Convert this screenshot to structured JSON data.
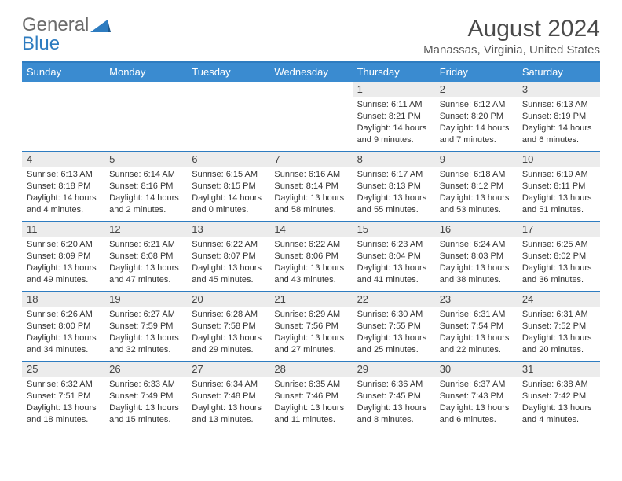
{
  "logo": {
    "general": "General",
    "blue": "Blue"
  },
  "title": "August 2024",
  "location": "Manassas, Virginia, United States",
  "header_bg": "#3a8bd0",
  "border_color": "#2e7cc0",
  "dayheaders": [
    "Sunday",
    "Monday",
    "Tuesday",
    "Wednesday",
    "Thursday",
    "Friday",
    "Saturday"
  ],
  "weeks": [
    [
      {
        "day": "",
        "sunrise": "",
        "sunset": "",
        "daylight": "",
        "empty": true
      },
      {
        "day": "",
        "sunrise": "",
        "sunset": "",
        "daylight": "",
        "empty": true
      },
      {
        "day": "",
        "sunrise": "",
        "sunset": "",
        "daylight": "",
        "empty": true
      },
      {
        "day": "",
        "sunrise": "",
        "sunset": "",
        "daylight": "",
        "empty": true
      },
      {
        "day": "1",
        "sunrise": "Sunrise: 6:11 AM",
        "sunset": "Sunset: 8:21 PM",
        "daylight": "Daylight: 14 hours and 9 minutes."
      },
      {
        "day": "2",
        "sunrise": "Sunrise: 6:12 AM",
        "sunset": "Sunset: 8:20 PM",
        "daylight": "Daylight: 14 hours and 7 minutes."
      },
      {
        "day": "3",
        "sunrise": "Sunrise: 6:13 AM",
        "sunset": "Sunset: 8:19 PM",
        "daylight": "Daylight: 14 hours and 6 minutes."
      }
    ],
    [
      {
        "day": "4",
        "sunrise": "Sunrise: 6:13 AM",
        "sunset": "Sunset: 8:18 PM",
        "daylight": "Daylight: 14 hours and 4 minutes."
      },
      {
        "day": "5",
        "sunrise": "Sunrise: 6:14 AM",
        "sunset": "Sunset: 8:16 PM",
        "daylight": "Daylight: 14 hours and 2 minutes."
      },
      {
        "day": "6",
        "sunrise": "Sunrise: 6:15 AM",
        "sunset": "Sunset: 8:15 PM",
        "daylight": "Daylight: 14 hours and 0 minutes."
      },
      {
        "day": "7",
        "sunrise": "Sunrise: 6:16 AM",
        "sunset": "Sunset: 8:14 PM",
        "daylight": "Daylight: 13 hours and 58 minutes."
      },
      {
        "day": "8",
        "sunrise": "Sunrise: 6:17 AM",
        "sunset": "Sunset: 8:13 PM",
        "daylight": "Daylight: 13 hours and 55 minutes."
      },
      {
        "day": "9",
        "sunrise": "Sunrise: 6:18 AM",
        "sunset": "Sunset: 8:12 PM",
        "daylight": "Daylight: 13 hours and 53 minutes."
      },
      {
        "day": "10",
        "sunrise": "Sunrise: 6:19 AM",
        "sunset": "Sunset: 8:11 PM",
        "daylight": "Daylight: 13 hours and 51 minutes."
      }
    ],
    [
      {
        "day": "11",
        "sunrise": "Sunrise: 6:20 AM",
        "sunset": "Sunset: 8:09 PM",
        "daylight": "Daylight: 13 hours and 49 minutes."
      },
      {
        "day": "12",
        "sunrise": "Sunrise: 6:21 AM",
        "sunset": "Sunset: 8:08 PM",
        "daylight": "Daylight: 13 hours and 47 minutes."
      },
      {
        "day": "13",
        "sunrise": "Sunrise: 6:22 AM",
        "sunset": "Sunset: 8:07 PM",
        "daylight": "Daylight: 13 hours and 45 minutes."
      },
      {
        "day": "14",
        "sunrise": "Sunrise: 6:22 AM",
        "sunset": "Sunset: 8:06 PM",
        "daylight": "Daylight: 13 hours and 43 minutes."
      },
      {
        "day": "15",
        "sunrise": "Sunrise: 6:23 AM",
        "sunset": "Sunset: 8:04 PM",
        "daylight": "Daylight: 13 hours and 41 minutes."
      },
      {
        "day": "16",
        "sunrise": "Sunrise: 6:24 AM",
        "sunset": "Sunset: 8:03 PM",
        "daylight": "Daylight: 13 hours and 38 minutes."
      },
      {
        "day": "17",
        "sunrise": "Sunrise: 6:25 AM",
        "sunset": "Sunset: 8:02 PM",
        "daylight": "Daylight: 13 hours and 36 minutes."
      }
    ],
    [
      {
        "day": "18",
        "sunrise": "Sunrise: 6:26 AM",
        "sunset": "Sunset: 8:00 PM",
        "daylight": "Daylight: 13 hours and 34 minutes."
      },
      {
        "day": "19",
        "sunrise": "Sunrise: 6:27 AM",
        "sunset": "Sunset: 7:59 PM",
        "daylight": "Daylight: 13 hours and 32 minutes."
      },
      {
        "day": "20",
        "sunrise": "Sunrise: 6:28 AM",
        "sunset": "Sunset: 7:58 PM",
        "daylight": "Daylight: 13 hours and 29 minutes."
      },
      {
        "day": "21",
        "sunrise": "Sunrise: 6:29 AM",
        "sunset": "Sunset: 7:56 PM",
        "daylight": "Daylight: 13 hours and 27 minutes."
      },
      {
        "day": "22",
        "sunrise": "Sunrise: 6:30 AM",
        "sunset": "Sunset: 7:55 PM",
        "daylight": "Daylight: 13 hours and 25 minutes."
      },
      {
        "day": "23",
        "sunrise": "Sunrise: 6:31 AM",
        "sunset": "Sunset: 7:54 PM",
        "daylight": "Daylight: 13 hours and 22 minutes."
      },
      {
        "day": "24",
        "sunrise": "Sunrise: 6:31 AM",
        "sunset": "Sunset: 7:52 PM",
        "daylight": "Daylight: 13 hours and 20 minutes."
      }
    ],
    [
      {
        "day": "25",
        "sunrise": "Sunrise: 6:32 AM",
        "sunset": "Sunset: 7:51 PM",
        "daylight": "Daylight: 13 hours and 18 minutes."
      },
      {
        "day": "26",
        "sunrise": "Sunrise: 6:33 AM",
        "sunset": "Sunset: 7:49 PM",
        "daylight": "Daylight: 13 hours and 15 minutes."
      },
      {
        "day": "27",
        "sunrise": "Sunrise: 6:34 AM",
        "sunset": "Sunset: 7:48 PM",
        "daylight": "Daylight: 13 hours and 13 minutes."
      },
      {
        "day": "28",
        "sunrise": "Sunrise: 6:35 AM",
        "sunset": "Sunset: 7:46 PM",
        "daylight": "Daylight: 13 hours and 11 minutes."
      },
      {
        "day": "29",
        "sunrise": "Sunrise: 6:36 AM",
        "sunset": "Sunset: 7:45 PM",
        "daylight": "Daylight: 13 hours and 8 minutes."
      },
      {
        "day": "30",
        "sunrise": "Sunrise: 6:37 AM",
        "sunset": "Sunset: 7:43 PM",
        "daylight": "Daylight: 13 hours and 6 minutes."
      },
      {
        "day": "31",
        "sunrise": "Sunrise: 6:38 AM",
        "sunset": "Sunset: 7:42 PM",
        "daylight": "Daylight: 13 hours and 4 minutes."
      }
    ]
  ]
}
